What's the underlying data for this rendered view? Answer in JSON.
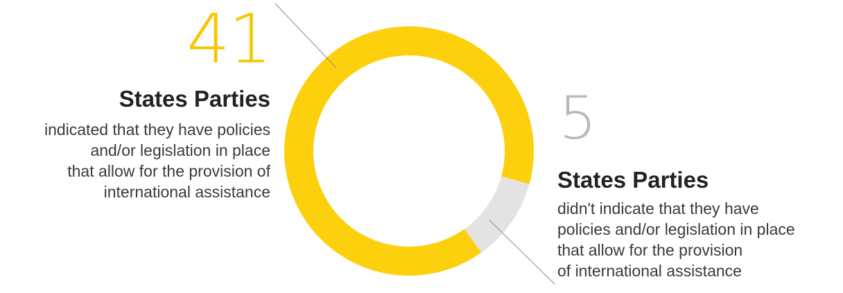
{
  "chart_data": {
    "type": "pie",
    "categories": [
      "indicated",
      "not_indicated"
    ],
    "values": [
      41,
      5
    ],
    "colors": [
      "#fdd00e",
      "#e3e3e3"
    ],
    "donut": true
  },
  "left_callout": {
    "number": "41",
    "heading": "States Parties",
    "description": "indicated that they have policies\nand/or legislation in place\nthat allow for the provision of\ninternational assistance"
  },
  "right_callout": {
    "number": "5",
    "heading": "States Parties",
    "description": "didn't indicate that they have\npolicies and/or legislation in place\nthat allow for the provision\nof international assistance"
  },
  "colors": {
    "accent": "#fdd00e",
    "muted": "#e3e3e3",
    "leader_line": "#8a8a8a"
  }
}
